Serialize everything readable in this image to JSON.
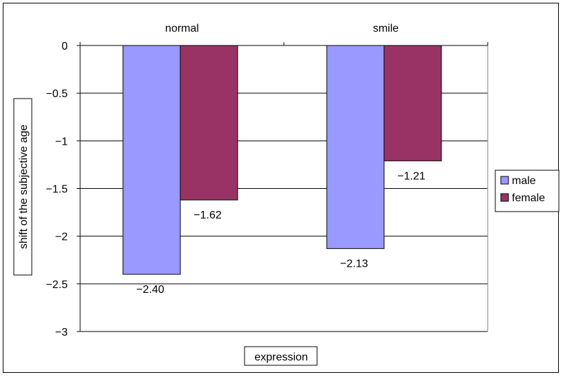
{
  "chart_data": {
    "type": "bar",
    "categories": [
      "normal",
      "smile"
    ],
    "series": [
      {
        "name": "male",
        "values": [
          -2.4,
          -2.13
        ],
        "labels": [
          "-2.40",
          "-2.13"
        ],
        "color": "#9999ff"
      },
      {
        "name": "female",
        "values": [
          -1.62,
          -1.21
        ],
        "labels": [
          "-1.62",
          "-1.21"
        ],
        "color": "#993366"
      }
    ],
    "xlabel": "expression",
    "ylabel": "shift of the subjective age",
    "ylim": [
      -3,
      0
    ],
    "yticks": [
      0,
      -0.5,
      -1,
      -1.5,
      -2,
      -2.5,
      -3
    ],
    "ytick_labels": [
      "0",
      "-0.5",
      "-1",
      "-1.5",
      "-2",
      "-2.5",
      "-3"
    ],
    "x_axis_position": "top",
    "grid": true,
    "legend_position": "right"
  }
}
